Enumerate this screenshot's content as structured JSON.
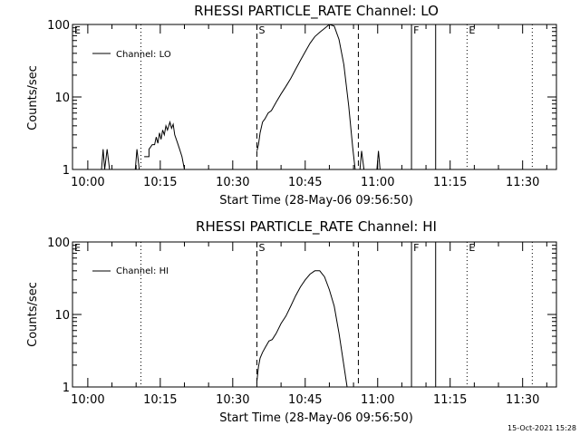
{
  "chart_data": [
    {
      "type": "line",
      "title": "RHESSI PARTICLE_RATE Channel: LO",
      "xlabel": "Start Time (28-May-06 09:56:50)",
      "ylabel": "Counts/sec",
      "yscale": "log",
      "ylim": [
        1,
        100
      ],
      "xlim": [
        "09:56:50",
        "11:37:00"
      ],
      "x_ticks": [
        "10:00",
        "10:15",
        "10:30",
        "10:45",
        "11:00",
        "11:15",
        "11:30"
      ],
      "y_ticks": [
        "1",
        "10",
        "100"
      ],
      "legend": {
        "label": "Channel: LO",
        "position": "top-left"
      },
      "markers": [
        {
          "label": "E",
          "time": "09:56:50",
          "style": "none"
        },
        {
          "label": "",
          "time": "10:11:00",
          "style": "dotted"
        },
        {
          "label": "S",
          "time": "10:35:00",
          "style": "dashed"
        },
        {
          "label": "",
          "time": "10:56:00",
          "style": "dashed"
        },
        {
          "label": "F",
          "time": "11:07:00",
          "style": "solid"
        },
        {
          "label": "",
          "time": "11:12:00",
          "style": "solid"
        },
        {
          "label": "E",
          "time": "11:18:30",
          "style": "dotted"
        },
        {
          "label": "",
          "time": "11:32:00",
          "style": "dotted"
        }
      ],
      "series": [
        {
          "name": "Channel: LO",
          "segments": [
            [
              [
                "10:02:50",
                1
              ],
              [
                "10:03:10",
                1.9
              ],
              [
                "10:03:30",
                1
              ],
              [
                "10:04:00",
                1.9
              ],
              [
                "10:04:30",
                1
              ]
            ],
            [
              [
                "10:09:50",
                1
              ],
              [
                "10:10:10",
                1.9
              ],
              [
                "10:10:40",
                1
              ]
            ],
            [
              [
                "10:11:40",
                1.5
              ],
              [
                "10:12:40",
                1.5
              ],
              [
                "10:12:40",
                1.9
              ],
              [
                "10:13:20",
                2.2
              ],
              [
                "10:13:50",
                2.2
              ],
              [
                "10:14:10",
                2.8
              ],
              [
                "10:14:30",
                2.3
              ],
              [
                "10:14:50",
                3.2
              ],
              [
                "10:15:10",
                2.6
              ],
              [
                "10:15:30",
                3.5
              ],
              [
                "10:15:50",
                3.0
              ],
              [
                "10:16:10",
                4.0
              ],
              [
                "10:16:30",
                3.5
              ],
              [
                "10:17:00",
                4.5
              ],
              [
                "10:17:20",
                3.7
              ],
              [
                "10:17:40",
                4.2
              ],
              [
                "10:18:00",
                3.0
              ],
              [
                "10:18:30",
                2.4
              ],
              [
                "10:19:00",
                1.9
              ],
              [
                "10:19:30",
                1.5
              ],
              [
                "10:20:00",
                1
              ]
            ],
            [
              [
                "10:35:00",
                1.8
              ],
              [
                "10:35:20",
                2.2
              ],
              [
                "10:35:40",
                3.2
              ],
              [
                "10:36:10",
                4.5
              ],
              [
                "10:36:40",
                5.0
              ],
              [
                "10:37:20",
                6.0
              ],
              [
                "10:38:00",
                6.5
              ],
              [
                "10:39:00",
                8.5
              ],
              [
                "10:40:00",
                11
              ],
              [
                "10:41:00",
                14
              ],
              [
                "10:42:00",
                18
              ],
              [
                "10:43:00",
                24
              ],
              [
                "10:44:00",
                32
              ],
              [
                "10:45:00",
                42
              ],
              [
                "10:46:00",
                55
              ],
              [
                "10:47:00",
                68
              ],
              [
                "10:48:00",
                78
              ],
              [
                "10:49:00",
                88
              ],
              [
                "10:50:00",
                100
              ],
              [
                "10:51:00",
                95
              ],
              [
                "10:52:00",
                62
              ],
              [
                "10:53:00",
                28
              ],
              [
                "10:54:00",
                7.5
              ],
              [
                "10:54:50",
                2.0
              ],
              [
                "10:55:20",
                1
              ]
            ],
            [
              [
                "10:56:20",
                1
              ],
              [
                "10:56:40",
                1.8
              ],
              [
                "10:57:10",
                1
              ]
            ],
            [
              [
                "10:59:50",
                1
              ],
              [
                "11:00:10",
                1.8
              ],
              [
                "11:00:30",
                1
              ]
            ]
          ]
        }
      ]
    },
    {
      "type": "line",
      "title": "RHESSI PARTICLE_RATE Channel: HI",
      "xlabel": "Start Time (28-May-06 09:56:50)",
      "ylabel": "Counts/sec",
      "yscale": "log",
      "ylim": [
        1,
        100
      ],
      "xlim": [
        "09:56:50",
        "11:37:00"
      ],
      "x_ticks": [
        "10:00",
        "10:15",
        "10:30",
        "10:45",
        "11:00",
        "11:15",
        "11:30"
      ],
      "y_ticks": [
        "1",
        "10",
        "100"
      ],
      "legend": {
        "label": "Channel: HI",
        "position": "top-left"
      },
      "markers": [
        {
          "label": "E",
          "time": "09:56:50",
          "style": "none"
        },
        {
          "label": "",
          "time": "10:11:00",
          "style": "dotted"
        },
        {
          "label": "S",
          "time": "10:35:00",
          "style": "dashed"
        },
        {
          "label": "",
          "time": "10:56:00",
          "style": "dashed"
        },
        {
          "label": "F",
          "time": "11:07:00",
          "style": "solid"
        },
        {
          "label": "",
          "time": "11:12:00",
          "style": "solid"
        },
        {
          "label": "E",
          "time": "11:18:30",
          "style": "dotted"
        },
        {
          "label": "",
          "time": "11:32:00",
          "style": "dotted"
        }
      ],
      "series": [
        {
          "name": "Channel: HI",
          "segments": [
            [
              [
                "10:35:00",
                1.2
              ],
              [
                "10:35:20",
                1.9
              ],
              [
                "10:35:40",
                2.5
              ],
              [
                "10:36:10",
                3.0
              ],
              [
                "10:36:50",
                3.6
              ],
              [
                "10:37:30",
                4.3
              ],
              [
                "10:38:10",
                4.5
              ],
              [
                "10:39:00",
                5.5
              ],
              [
                "10:40:00",
                7.5
              ],
              [
                "10:41:00",
                9.5
              ],
              [
                "10:42:00",
                13
              ],
              [
                "10:43:00",
                18
              ],
              [
                "10:44:00",
                24
              ],
              [
                "10:45:00",
                30
              ],
              [
                "10:46:00",
                36
              ],
              [
                "10:47:00",
                40
              ],
              [
                "10:48:00",
                40
              ],
              [
                "10:49:00",
                33
              ],
              [
                "10:50:00",
                22
              ],
              [
                "10:51:00",
                13
              ],
              [
                "10:52:00",
                5.5
              ],
              [
                "10:53:00",
                2.0
              ],
              [
                "10:53:40",
                1
              ]
            ]
          ]
        }
      ]
    }
  ],
  "timestamp": "15-Oct-2021 15:28"
}
